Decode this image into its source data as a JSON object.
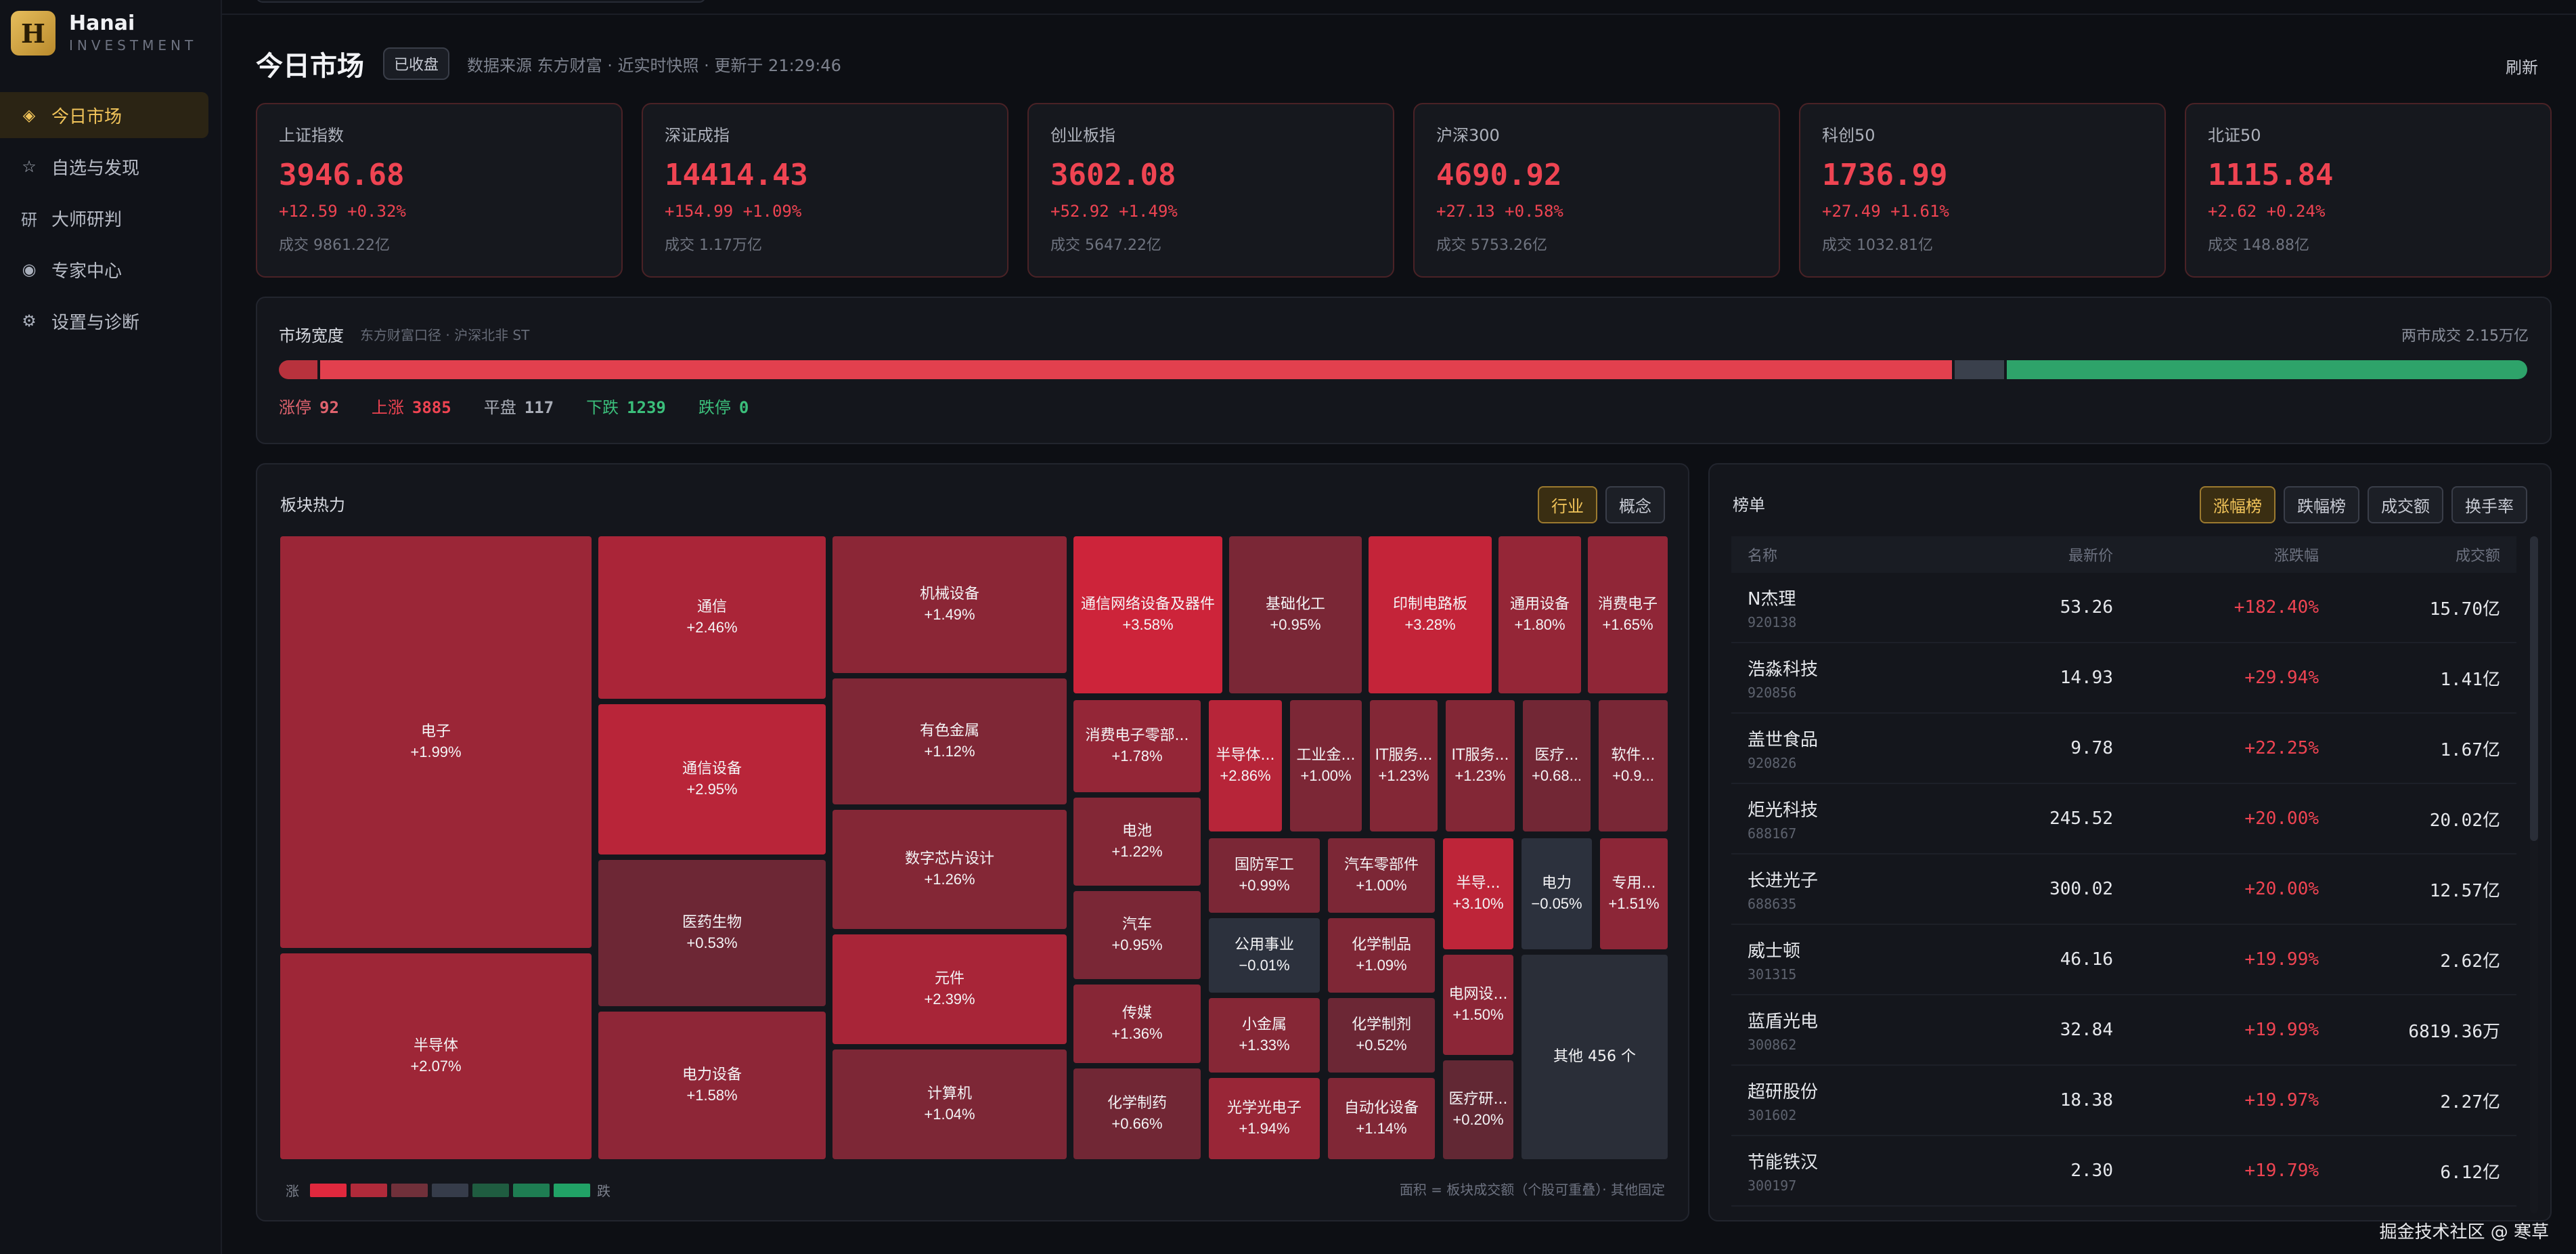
{
  "brand": {
    "logo_letter": "H",
    "name": "Hanai",
    "sub": "INVESTMENT"
  },
  "nav": [
    {
      "icon": "◈",
      "label": "今日市场",
      "active": true
    },
    {
      "icon": "☆",
      "label": "自选与发现",
      "active": false
    },
    {
      "icon": "研",
      "label": "大师研判",
      "active": false
    },
    {
      "icon": "◉",
      "label": "专家中心",
      "active": false
    },
    {
      "icon": "⚙",
      "label": "设置与诊断",
      "active": false
    }
  ],
  "header": {
    "title": "今日市场",
    "status": "已收盘",
    "meta": "数据来源 东方财富 · 近实时快照 · 更新于 21:29:46",
    "refresh": "刷新"
  },
  "indices": [
    {
      "name": "上证指数",
      "value": "3946.68",
      "change": "+12.59  +0.32%",
      "volume": "成交 9861.22亿"
    },
    {
      "name": "深证成指",
      "value": "14414.43",
      "change": "+154.99  +1.09%",
      "volume": "成交 1.17万亿"
    },
    {
      "name": "创业板指",
      "value": "3602.08",
      "change": "+52.92  +1.49%",
      "volume": "成交 5647.22亿"
    },
    {
      "name": "沪深300",
      "value": "4690.92",
      "change": "+27.13  +0.58%",
      "volume": "成交 5753.26亿"
    },
    {
      "name": "科创50",
      "value": "1736.99",
      "change": "+27.49  +1.61%",
      "volume": "成交 1032.81亿"
    },
    {
      "name": "北证50",
      "value": "1115.84",
      "change": "+2.62  +0.24%",
      "volume": "成交 148.88亿"
    }
  ],
  "breadth": {
    "title": "市场宽度",
    "sub": "东方财富口径 · 沪深北非 ST",
    "total_volume": "两市成交 2.15万亿",
    "limit_up": {
      "label": "涨停",
      "value": "92"
    },
    "up": {
      "label": "上涨",
      "value": "3885"
    },
    "flat": {
      "label": "平盘",
      "value": "117"
    },
    "down": {
      "label": "下跌",
      "value": "1239"
    },
    "limit_down": {
      "label": "跌停",
      "value": "0"
    },
    "counts": {
      "limit_up": 92,
      "up": 3885,
      "flat": 117,
      "down": 1239,
      "limit_down": 0
    },
    "colors": {
      "limit_up": "#b8323d",
      "up": "#e2404e",
      "flat": "#3a404c",
      "down": "#2ea36a",
      "limit_down": "#1f8a55"
    }
  },
  "sectors": {
    "title": "板块热力",
    "tabs": [
      {
        "label": "行业",
        "active": true
      },
      {
        "label": "概念",
        "active": false
      }
    ],
    "tiles": [
      {
        "name": "电子",
        "pct": "+1.99%",
        "v": 1.99
      },
      {
        "name": "半导体",
        "pct": "+2.07%",
        "v": 2.07
      },
      {
        "name": "通信",
        "pct": "+2.46%",
        "v": 2.46
      },
      {
        "name": "通信设备",
        "pct": "+2.95%",
        "v": 2.95
      },
      {
        "name": "医药生物",
        "pct": "+0.53%",
        "v": 0.53
      },
      {
        "name": "电力设备",
        "pct": "+1.58%",
        "v": 1.58
      },
      {
        "name": "机械设备",
        "pct": "+1.49%",
        "v": 1.49
      },
      {
        "name": "有色金属",
        "pct": "+1.12%",
        "v": 1.12
      },
      {
        "name": "数字芯片设计",
        "pct": "+1.26%",
        "v": 1.26
      },
      {
        "name": "元件",
        "pct": "+2.39%",
        "v": 2.39
      },
      {
        "name": "计算机",
        "pct": "+1.04%",
        "v": 1.04
      },
      {
        "name": "通信网络设备及器件",
        "pct": "+3.58%",
        "v": 3.58
      },
      {
        "name": "基础化工",
        "pct": "+0.95%",
        "v": 0.95
      },
      {
        "name": "印制电路板",
        "pct": "+3.28%",
        "v": 3.28
      },
      {
        "name": "通用设备",
        "pct": "+1.80%",
        "v": 1.8
      },
      {
        "name": "消费电子",
        "pct": "+1.65%",
        "v": 1.65
      },
      {
        "name": "消费电子零部...",
        "pct": "+1.78%",
        "v": 1.78
      },
      {
        "name": "电池",
        "pct": "+1.22%",
        "v": 1.22
      },
      {
        "name": "汽车",
        "pct": "+0.95%",
        "v": 0.95
      },
      {
        "name": "传媒",
        "pct": "+1.36%",
        "v": 1.36
      },
      {
        "name": "化学制药",
        "pct": "+0.66%",
        "v": 0.66
      },
      {
        "name": "半导体...",
        "pct": "+2.86%",
        "v": 2.86
      },
      {
        "name": "工业金...",
        "pct": "+1.00%",
        "v": 1.0
      },
      {
        "name": "IT服务...",
        "pct": "+1.23%",
        "v": 1.23
      },
      {
        "name": "IT服务...",
        "pct": "+1.23%",
        "v": 1.23
      },
      {
        "name": "医疗...",
        "pct": "+0.68...",
        "v": 0.68
      },
      {
        "name": "软件...",
        "pct": "+0.9...",
        "v": 0.9
      },
      {
        "name": "国防军工",
        "pct": "+0.99%",
        "v": 0.99
      },
      {
        "name": "汽车零部件",
        "pct": "+1.00%",
        "v": 1.0
      },
      {
        "name": "半导...",
        "pct": "+3.10%",
        "v": 3.1
      },
      {
        "name": "电力",
        "pct": "−0.05%",
        "v": -0.05
      },
      {
        "name": "专用...",
        "pct": "+1.51%",
        "v": 1.51
      },
      {
        "name": "公用事业",
        "pct": "−0.01%",
        "v": -0.01
      },
      {
        "name": "化学制品",
        "pct": "+1.09%",
        "v": 1.09
      },
      {
        "name": "小金属",
        "pct": "+1.33%",
        "v": 1.33
      },
      {
        "name": "化学制剂",
        "pct": "+0.52%",
        "v": 0.52
      },
      {
        "name": "电网设...",
        "pct": "+1.50%",
        "v": 1.5
      },
      {
        "name": "其他 456 个",
        "pct": "",
        "v": 0
      },
      {
        "name": "光学光电子",
        "pct": "+1.94%",
        "v": 1.94
      },
      {
        "name": "自动化设备",
        "pct": "+1.14%",
        "v": 1.14
      },
      {
        "name": "医疗研...",
        "pct": "+0.20%",
        "v": 0.2
      }
    ],
    "legend_up": "涨",
    "legend_down": "跌",
    "legend_colors": [
      "#e0283d",
      "#b02a3a",
      "#70303a",
      "#363c4a",
      "#1f5c40",
      "#1e7d52",
      "#21a266"
    ],
    "footnote": "面积 = 板块成交额（个股可重叠）· 其他固定"
  },
  "ranking": {
    "title": "榜单",
    "tabs": [
      {
        "label": "涨幅榜",
        "active": true
      },
      {
        "label": "跌幅榜",
        "active": false
      },
      {
        "label": "成交额",
        "active": false
      },
      {
        "label": "换手率",
        "active": false
      }
    ],
    "columns": [
      "名称",
      "最新价",
      "涨跌幅",
      "成交额"
    ],
    "rows": [
      {
        "name": "N杰理",
        "code": "920138",
        "price": "53.26",
        "chg": "+182.40%",
        "amt": "15.70亿"
      },
      {
        "name": "浩淼科技",
        "code": "920856",
        "price": "14.93",
        "chg": "+29.94%",
        "amt": "1.41亿"
      },
      {
        "name": "盖世食品",
        "code": "920826",
        "price": "9.78",
        "chg": "+22.25%",
        "amt": "1.67亿"
      },
      {
        "name": "炬光科技",
        "code": "688167",
        "price": "245.52",
        "chg": "+20.00%",
        "amt": "20.02亿"
      },
      {
        "name": "长进光子",
        "code": "688635",
        "price": "300.02",
        "chg": "+20.00%",
        "amt": "12.57亿"
      },
      {
        "name": "威士顿",
        "code": "301315",
        "price": "46.16",
        "chg": "+19.99%",
        "amt": "2.62亿"
      },
      {
        "name": "蓝盾光电",
        "code": "300862",
        "price": "32.84",
        "chg": "+19.99%",
        "amt": "6819.36万"
      },
      {
        "name": "超研股份",
        "code": "301602",
        "price": "18.38",
        "chg": "+19.97%",
        "amt": "2.27亿"
      },
      {
        "name": "节能铁汉",
        "code": "300197",
        "price": "2.30",
        "chg": "+19.79%",
        "amt": "6.12亿"
      }
    ]
  },
  "watermark": "掘金技术社区 @ 寒草"
}
